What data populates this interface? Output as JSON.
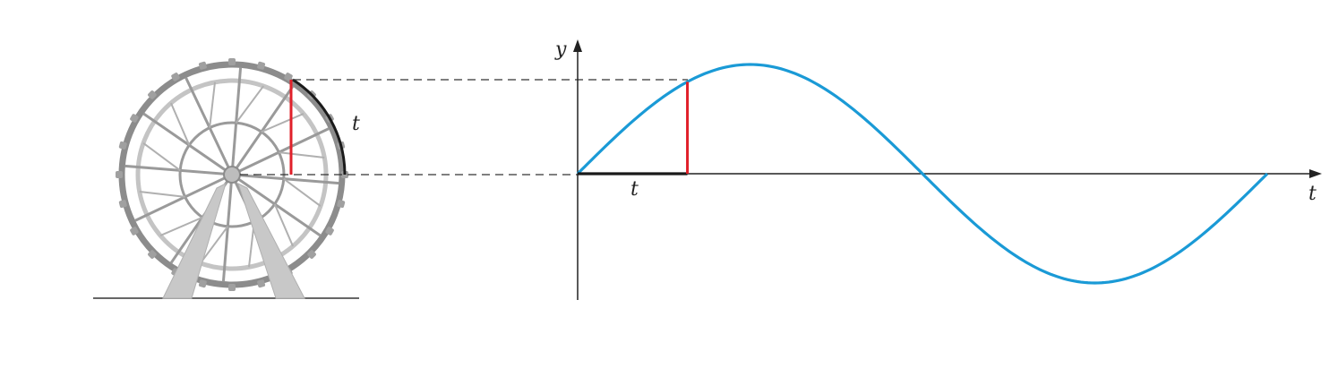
{
  "labels": {
    "wheel_arc": "t",
    "x_axis_segment": "t",
    "y_axis": "y",
    "t_axis": "t"
  },
  "colors": {
    "curve": "#1a9ad6",
    "height_segment": "#e0202a",
    "arc_and_segment": "#1a1a1a",
    "wheel_outer": "#8c8c8c",
    "wheel_inner": "#c4c4c4",
    "support": "#c8c8c8",
    "axis": "#222222",
    "dashed": "#333333"
  },
  "chart_data": {
    "type": "line",
    "function": "sine",
    "x_range": [
      0,
      6.2832
    ],
    "y_range": [
      -1,
      1
    ],
    "marked_t": 1.0
  }
}
